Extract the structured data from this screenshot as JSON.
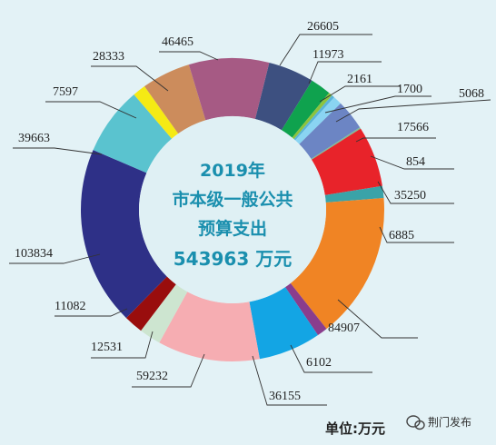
{
  "chart_data": {
    "type": "donut",
    "title_lines": [
      "2019年",
      "市本级一般公共",
      "预算支出",
      "543963 万元"
    ],
    "unit_note": "单位:万元",
    "categories": [
      "26605",
      "11973",
      "2161",
      "1700",
      "5068",
      "17566",
      "854",
      "35250",
      "6885",
      "84907",
      "6102",
      "36155",
      "59232",
      "12531",
      "11082",
      "103834",
      "39663",
      "7597",
      "28333",
      "46465"
    ],
    "values": [
      26605,
      11973,
      2161,
      1700,
      5068,
      17566,
      854,
      35250,
      6885,
      84907,
      6102,
      36155,
      59232,
      12531,
      11082,
      103834,
      39663,
      7597,
      28333,
      46465
    ],
    "colors": [
      "#3d5080",
      "#0fa24e",
      "#8dc33d",
      "#5ab4d8",
      "#8ad4f2",
      "#6c85c4",
      "#7dbf96",
      "#e8232a",
      "#3aa3a8",
      "#f08424",
      "#8a3d8d",
      "#13a5e4",
      "#f6adb2",
      "#cde5d0",
      "#990d0d",
      "#2e3087",
      "#5ac3cf",
      "#f5ea14",
      "#cc8c5c",
      "#a65a84"
    ]
  },
  "watermark": {
    "text": "荆门发布",
    "icon": "wechat-icon"
  }
}
